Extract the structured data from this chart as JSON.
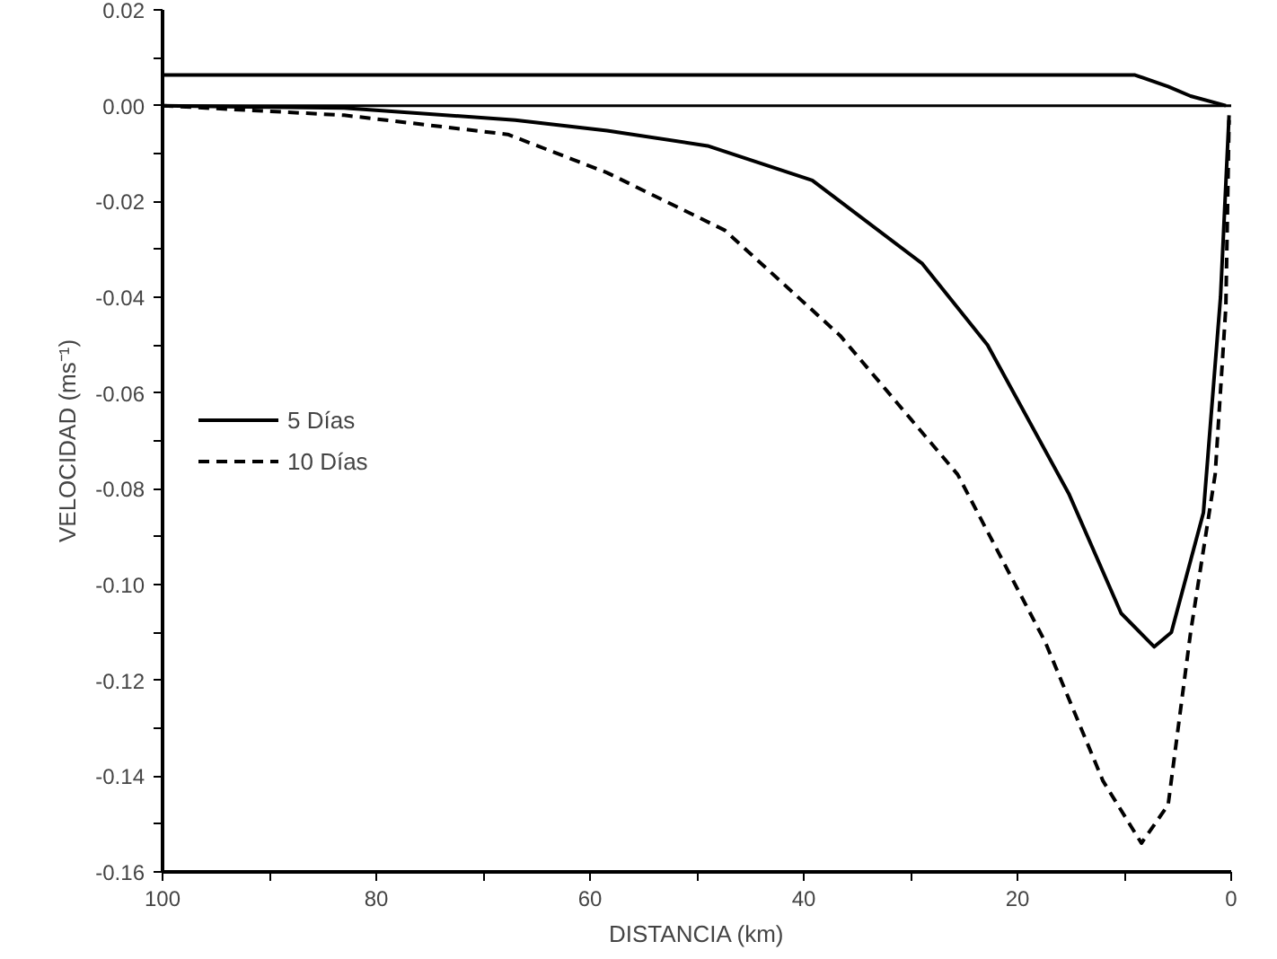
{
  "chart_data": {
    "type": "line",
    "xlabel": "DISTANCIA (km)",
    "ylabel": "VELOCIDAD (ms⁻¹)",
    "xlim": [
      100,
      0
    ],
    "ylim": [
      -0.16,
      0.02
    ],
    "xticks": [
      100,
      {
        "value": 90,
        "label": null
      },
      80,
      {
        "value": 70,
        "label": null
      },
      60,
      {
        "value": 50,
        "label": null
      },
      40,
      {
        "value": 30,
        "label": null
      },
      20,
      {
        "value": 10,
        "label": null
      },
      0
    ],
    "yticks": [
      {
        "value": 0.02,
        "label": "0.02"
      },
      {
        "value": 0.01,
        "label": null
      },
      {
        "value": 0,
        "label": "0.00"
      },
      {
        "value": -0.01,
        "label": null
      },
      {
        "value": -0.02,
        "label": "-0.02"
      },
      {
        "value": -0.03,
        "label": null
      },
      {
        "value": -0.04,
        "label": "-0.04"
      },
      {
        "value": -0.05,
        "label": null
      },
      {
        "value": -0.06,
        "label": "-0.06"
      },
      {
        "value": -0.07,
        "label": null
      },
      {
        "value": -0.08,
        "label": "-0.08"
      },
      {
        "value": -0.09,
        "label": null
      },
      {
        "value": -0.1,
        "label": "-0.10"
      },
      {
        "value": -0.11,
        "label": null
      },
      {
        "value": -0.12,
        "label": "-0.12"
      },
      {
        "value": -0.13,
        "label": null
      },
      {
        "value": -0.14,
        "label": "-0.14"
      },
      {
        "value": -0.15,
        "label": null
      },
      {
        "value": -0.16,
        "label": "-0.16"
      }
    ],
    "grid": false,
    "legend": "left",
    "marker": "none",
    "ref_lines": [
      {
        "axis": "y",
        "value": 0,
        "label": null,
        "color": "#000000"
      }
    ],
    "series": [
      {
        "name": "5 Días",
        "color": "#000000",
        "line_style": "solid",
        "x": [
          100,
          83,
          67,
          58.4,
          49,
          39.2,
          28.9,
          22.8,
          15.2,
          10.3,
          7.2,
          5.6,
          2.6,
          1.0,
          0.2
        ],
        "values": [
          0,
          -0.0005,
          -0.003,
          -0.0052,
          -0.0084,
          -0.0156,
          -0.033,
          -0.05,
          -0.081,
          -0.106,
          -0.113,
          -0.11,
          -0.085,
          -0.04,
          -0.002
        ]
      },
      {
        "name": "10 Días",
        "color": "#000000",
        "line_style": "dashed",
        "x": [
          100,
          83,
          67.7,
          58.4,
          47.4,
          36.6,
          25.6,
          17.4,
          12,
          8.4,
          5.9,
          3.8,
          1.5,
          0.5,
          0.2
        ],
        "values": [
          0,
          -0.002,
          -0.006,
          -0.014,
          -0.026,
          -0.048,
          -0.077,
          -0.112,
          -0.141,
          -0.154,
          -0.146,
          -0.11,
          -0.077,
          -0.042,
          -0.003
        ]
      },
      {
        "color": "#000000",
        "line_style": "solid",
        "x": [
          100,
          9,
          5.9,
          3.8,
          0.5
        ],
        "values": [
          0.0064,
          0.0064,
          0.004,
          0.002,
          0
        ]
      }
    ]
  }
}
